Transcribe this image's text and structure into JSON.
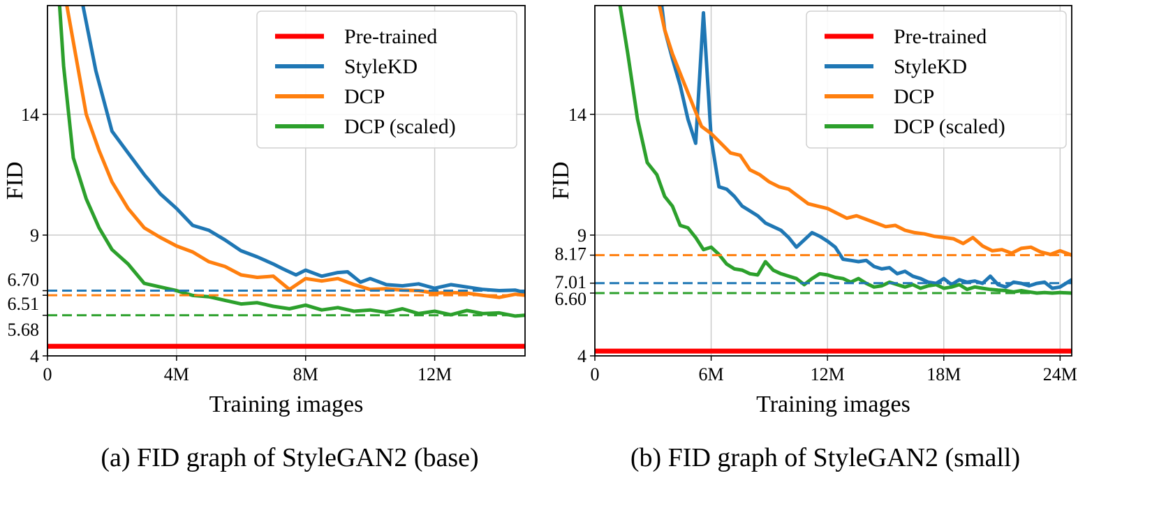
{
  "chart_data": [
    {
      "type": "line",
      "caption": "(a) FID graph of StyleGAN2 (base)",
      "xlabel": "Training images",
      "ylabel": "FID",
      "xlim": [
        0,
        14.8
      ],
      "ylim": [
        4,
        18.5
      ],
      "xticks": [
        0,
        4,
        8,
        12
      ],
      "xtick_labels": [
        "0",
        "4M",
        "8M",
        "12M"
      ],
      "yticks": [
        4,
        9,
        14
      ],
      "ytick_labels": [
        "4",
        "9",
        "14"
      ],
      "extra_ytick_labels": [
        {
          "value": 6.7,
          "label": "6.70"
        },
        {
          "value": 6.51,
          "label": "6.51"
        },
        {
          "value": 5.68,
          "label": "5.68"
        }
      ],
      "grid": true,
      "legend_position": "top-right",
      "series": [
        {
          "name": "Pre-trained",
          "color": "#ff0000",
          "style": "solid-flat",
          "x": [
            0,
            14.8
          ],
          "y": [
            4.4,
            4.4
          ]
        },
        {
          "name": "StyleKD",
          "color": "#1f77b4",
          "style": "solid",
          "x": [
            0.3,
            0.7,
            1.1,
            1.5,
            2.0,
            2.5,
            3.0,
            3.5,
            4.0,
            4.5,
            5.0,
            5.5,
            6.0,
            6.5,
            7.0,
            7.3,
            7.7,
            8.0,
            8.5,
            9.0,
            9.3,
            9.7,
            10.0,
            10.5,
            11.0,
            11.5,
            12.0,
            12.5,
            13.0,
            13.5,
            14.0,
            14.5,
            14.8
          ],
          "y": [
            25,
            21,
            18.5,
            15.8,
            13.3,
            12.4,
            11.5,
            10.7,
            10.1,
            9.4,
            9.2,
            8.8,
            8.35,
            8.1,
            7.8,
            7.6,
            7.35,
            7.55,
            7.3,
            7.45,
            7.48,
            7.05,
            7.2,
            6.95,
            6.9,
            6.98,
            6.8,
            6.95,
            6.85,
            6.75,
            6.7,
            6.72,
            6.62
          ]
        },
        {
          "name": "DCP",
          "color": "#ff7f0e",
          "style": "solid",
          "x": [
            0.4,
            0.8,
            1.2,
            1.6,
            2.0,
            2.5,
            3.0,
            3.5,
            4.0,
            4.5,
            5.0,
            5.5,
            6.0,
            6.5,
            7.0,
            7.5,
            8.0,
            8.5,
            9.0,
            9.5,
            10.0,
            10.5,
            11.0,
            11.5,
            12.0,
            12.5,
            13.0,
            13.5,
            14.0,
            14.5,
            14.8
          ],
          "y": [
            20,
            17,
            14,
            12.5,
            11.2,
            10.1,
            9.3,
            8.9,
            8.55,
            8.3,
            7.9,
            7.7,
            7.35,
            7.25,
            7.3,
            6.75,
            7.2,
            7.1,
            7.2,
            6.95,
            6.75,
            6.78,
            6.72,
            6.7,
            6.6,
            6.62,
            6.6,
            6.5,
            6.42,
            6.55,
            6.51
          ]
        },
        {
          "name": "DCP (scaled)",
          "color": "#2ca02c",
          "style": "solid",
          "x": [
            0.15,
            0.3,
            0.5,
            0.8,
            1.2,
            1.6,
            2.0,
            2.5,
            3.0,
            3.5,
            4.0,
            4.5,
            5.0,
            5.5,
            6.0,
            6.5,
            7.0,
            7.5,
            8.0,
            8.5,
            9.0,
            9.5,
            10.0,
            10.5,
            11.0,
            11.5,
            12.0,
            12.5,
            13.0,
            13.5,
            14.0,
            14.5,
            14.8
          ],
          "y": [
            25,
            20,
            16,
            12.2,
            10.5,
            9.3,
            8.4,
            7.8,
            7.0,
            6.85,
            6.7,
            6.5,
            6.45,
            6.3,
            6.15,
            6.2,
            6.05,
            5.95,
            6.1,
            5.9,
            6.0,
            5.85,
            5.9,
            5.8,
            5.95,
            5.75,
            5.85,
            5.7,
            5.88,
            5.75,
            5.78,
            5.65,
            5.68
          ]
        },
        {
          "name": "StyleKD",
          "color": "#1f77b4",
          "style": "dashed",
          "legend": false,
          "x": [
            0,
            14.8
          ],
          "y": [
            6.7,
            6.7
          ]
        },
        {
          "name": "DCP",
          "color": "#ff7f0e",
          "style": "dashed",
          "legend": false,
          "x": [
            0,
            14.8
          ],
          "y": [
            6.51,
            6.51
          ]
        },
        {
          "name": "DCP (scaled)",
          "color": "#2ca02c",
          "style": "dashed",
          "legend": false,
          "x": [
            0,
            14.8
          ],
          "y": [
            5.68,
            5.68
          ]
        }
      ]
    },
    {
      "type": "line",
      "caption": "(b) FID graph of StyleGAN2 (small)",
      "xlabel": "Training images",
      "ylabel": "FID",
      "xlim": [
        0,
        24.6
      ],
      "ylim": [
        4,
        18.5
      ],
      "xticks": [
        0,
        6,
        12,
        18,
        24
      ],
      "xtick_labels": [
        "0",
        "6M",
        "12M",
        "18M",
        "24M"
      ],
      "yticks": [
        4,
        9,
        14
      ],
      "ytick_labels": [
        "4",
        "9",
        "14"
      ],
      "extra_ytick_labels": [
        {
          "value": 8.17,
          "label": "8.17"
        },
        {
          "value": 7.01,
          "label": "7.01"
        },
        {
          "value": 6.6,
          "label": "6.60"
        }
      ],
      "grid": true,
      "legend_position": "top-right",
      "series": [
        {
          "name": "Pre-trained",
          "color": "#ff0000",
          "style": "solid-flat",
          "x": [
            0,
            24.6
          ],
          "y": [
            4.2,
            4.2
          ]
        },
        {
          "name": "StyleKD",
          "color": "#1f77b4",
          "style": "solid",
          "x": [
            3.3,
            3.6,
            4.0,
            4.4,
            4.8,
            5.2,
            5.6,
            6.0,
            6.4,
            6.8,
            7.2,
            7.6,
            8.0,
            8.4,
            8.8,
            9.2,
            9.6,
            10.0,
            10.4,
            10.8,
            11.2,
            11.6,
            12.0,
            12.4,
            12.8,
            13.2,
            13.6,
            14.0,
            14.4,
            14.8,
            15.2,
            15.6,
            16.0,
            16.4,
            16.8,
            17.2,
            17.6,
            18.0,
            18.4,
            18.8,
            19.2,
            19.6,
            20.0,
            20.4,
            20.8,
            21.2,
            21.6,
            22.0,
            22.4,
            22.8,
            23.2,
            23.6,
            24.0,
            24.6
          ],
          "y": [
            19.5,
            17.5,
            16.3,
            15.2,
            13.8,
            12.8,
            18.2,
            13.0,
            11.0,
            10.9,
            10.6,
            10.2,
            10.0,
            9.8,
            9.5,
            9.35,
            9.2,
            8.9,
            8.5,
            8.8,
            9.1,
            8.95,
            8.75,
            8.5,
            8.0,
            7.95,
            7.9,
            7.95,
            7.7,
            7.6,
            7.65,
            7.4,
            7.5,
            7.3,
            7.2,
            7.05,
            7.0,
            7.2,
            6.95,
            7.15,
            7.05,
            7.1,
            7.0,
            7.3,
            6.95,
            6.85,
            7.05,
            7.0,
            6.9,
            7.0,
            7.05,
            6.8,
            6.85,
            7.15
          ]
        },
        {
          "name": "DCP",
          "color": "#ff7f0e",
          "style": "solid",
          "x": [
            3.2,
            3.6,
            4.0,
            4.5,
            5.0,
            5.5,
            6.0,
            6.5,
            7.0,
            7.5,
            8.0,
            8.5,
            9.0,
            9.5,
            10.0,
            10.5,
            11.0,
            11.5,
            12.0,
            12.5,
            13.0,
            13.5,
            14.0,
            14.5,
            15.0,
            15.5,
            16.0,
            16.5,
            17.0,
            17.5,
            18.0,
            18.5,
            19.0,
            19.5,
            20.0,
            20.5,
            21.0,
            21.5,
            22.0,
            22.5,
            23.0,
            23.5,
            24.0,
            24.6
          ],
          "y": [
            19,
            17.5,
            16.5,
            15.5,
            14.5,
            13.5,
            13.2,
            12.8,
            12.4,
            12.3,
            11.7,
            11.5,
            11.2,
            11.0,
            10.9,
            10.6,
            10.3,
            10.2,
            10.1,
            9.9,
            9.7,
            9.8,
            9.65,
            9.5,
            9.35,
            9.4,
            9.2,
            9.1,
            9.05,
            8.95,
            8.9,
            8.85,
            8.65,
            8.9,
            8.55,
            8.35,
            8.4,
            8.25,
            8.45,
            8.5,
            8.3,
            8.2,
            8.35,
            8.17
          ]
        },
        {
          "name": "DCP (scaled)",
          "color": "#2ca02c",
          "style": "solid",
          "x": [
            1.0,
            1.3,
            1.7,
            2.2,
            2.7,
            3.2,
            3.6,
            4.0,
            4.4,
            4.8,
            5.2,
            5.6,
            6.0,
            6.4,
            6.8,
            7.2,
            7.6,
            8.0,
            8.4,
            8.8,
            9.2,
            9.6,
            10.0,
            10.4,
            10.8,
            11.2,
            11.6,
            12.0,
            12.4,
            12.8,
            13.2,
            13.6,
            14.0,
            14.4,
            14.8,
            15.2,
            15.6,
            16.0,
            16.4,
            16.8,
            17.2,
            17.6,
            18.0,
            18.4,
            18.8,
            19.2,
            19.6,
            20.0,
            20.4,
            20.8,
            21.2,
            21.6,
            22.0,
            22.4,
            22.8,
            23.2,
            23.6,
            24.0,
            24.6
          ],
          "y": [
            25,
            18.5,
            16.5,
            13.8,
            12.0,
            11.5,
            10.6,
            10.2,
            9.4,
            9.3,
            8.9,
            8.4,
            8.5,
            8.2,
            7.8,
            7.6,
            7.55,
            7.4,
            7.35,
            7.9,
            7.55,
            7.4,
            7.3,
            7.2,
            6.95,
            7.2,
            7.4,
            7.35,
            7.25,
            7.2,
            7.05,
            7.2,
            7.0,
            6.85,
            6.9,
            7.05,
            6.95,
            6.85,
            6.95,
            6.8,
            6.9,
            6.95,
            6.8,
            6.85,
            6.95,
            6.75,
            6.85,
            6.8,
            6.75,
            6.72,
            6.7,
            6.65,
            6.7,
            6.65,
            6.6,
            6.62,
            6.6,
            6.62,
            6.6
          ]
        },
        {
          "name": "StyleKD",
          "color": "#1f77b4",
          "style": "dashed",
          "legend": false,
          "x": [
            0,
            24.6
          ],
          "y": [
            7.01,
            7.01
          ]
        },
        {
          "name": "DCP",
          "color": "#ff7f0e",
          "style": "dashed",
          "legend": false,
          "x": [
            0,
            24.6
          ],
          "y": [
            8.17,
            8.17
          ]
        },
        {
          "name": "DCP (scaled)",
          "color": "#2ca02c",
          "style": "dashed",
          "legend": false,
          "x": [
            0,
            24.6
          ],
          "y": [
            6.6,
            6.6
          ]
        }
      ]
    }
  ]
}
